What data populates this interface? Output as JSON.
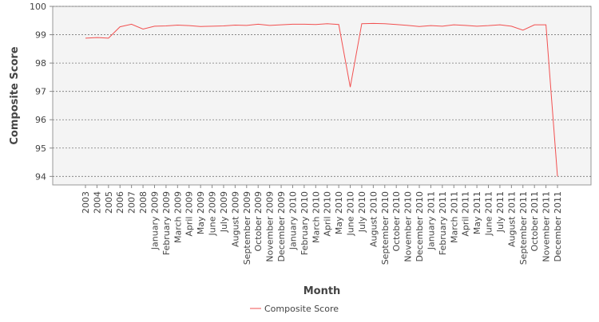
{
  "chart_data": {
    "type": "line",
    "x_label": "Month",
    "y_label": "Composite Score",
    "categories": [
      "2003",
      "2004",
      "2005",
      "2006",
      "2007",
      "2008",
      "January 2009",
      "February 2009",
      "March 2009",
      "April 2009",
      "May 2009",
      "June 2009",
      "July 2009",
      "August 2009",
      "September 2009",
      "October 2009",
      "November 2009",
      "December 2009",
      "January 2010",
      "February 2010",
      "March 2010",
      "April 2010",
      "May 2010",
      "June 2010",
      "July 2010",
      "August 2010",
      "September 2010",
      "October 2010",
      "November 2010",
      "December 2010",
      "January 2011",
      "February 2011",
      "March 2011",
      "April 2011",
      "May 2011",
      "June 2011",
      "July 2011",
      "August 2011",
      "September 2011",
      "October 2011",
      "November 2011",
      "December 2011"
    ],
    "series": [
      {
        "name": "Composite Score",
        "color": "#f25050",
        "values": [
          98.88,
          98.9,
          98.88,
          99.28,
          99.37,
          99.2,
          99.3,
          99.31,
          99.34,
          99.32,
          99.29,
          99.3,
          99.31,
          99.34,
          99.33,
          99.37,
          99.33,
          99.35,
          99.37,
          99.37,
          99.36,
          99.39,
          99.36,
          97.15,
          99.39,
          99.4,
          99.39,
          99.36,
          99.33,
          99.29,
          99.32,
          99.3,
          99.35,
          99.33,
          99.3,
          99.32,
          99.35,
          99.3,
          99.16,
          99.35,
          99.35,
          94.0
        ]
      }
    ],
    "ylim": [
      93.7,
      100
    ],
    "yticks": [
      94,
      95,
      96,
      97,
      98,
      99,
      100
    ],
    "grid": true,
    "legend": "bottom"
  }
}
